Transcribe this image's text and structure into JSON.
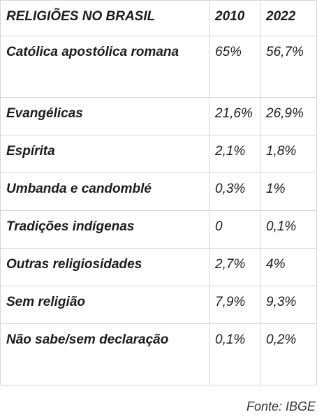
{
  "table": {
    "header": {
      "title": "RELIGIÕES NO BRASIL",
      "col_2010": "2010",
      "col_2022": "2022"
    },
    "rows": [
      {
        "label": "Católica apostólica romana",
        "v2010": "65%",
        "v2022": "56,7%"
      },
      {
        "label": "Evangélicas",
        "v2010": "21,6%",
        "v2022": "26,9%"
      },
      {
        "label": "Espírita",
        "v2010": "2,1%",
        "v2022": "1,8%"
      },
      {
        "label": "Umbanda e candomblé",
        "v2010": "0,3%",
        "v2022": "1%"
      },
      {
        "label": "Tradições indígenas",
        "v2010": "0",
        "v2022": "0,1%"
      },
      {
        "label": "Outras religiosidades",
        "v2010": "2,7%",
        "v2022": "4%"
      },
      {
        "label": "Sem religião",
        "v2010": "7,9%",
        "v2022": "9,3%"
      },
      {
        "label": "Não sabe/sem declaração",
        "v2010": "0,1%",
        "v2022": "0,2%"
      }
    ]
  },
  "source": "Fonte: IBGE"
}
